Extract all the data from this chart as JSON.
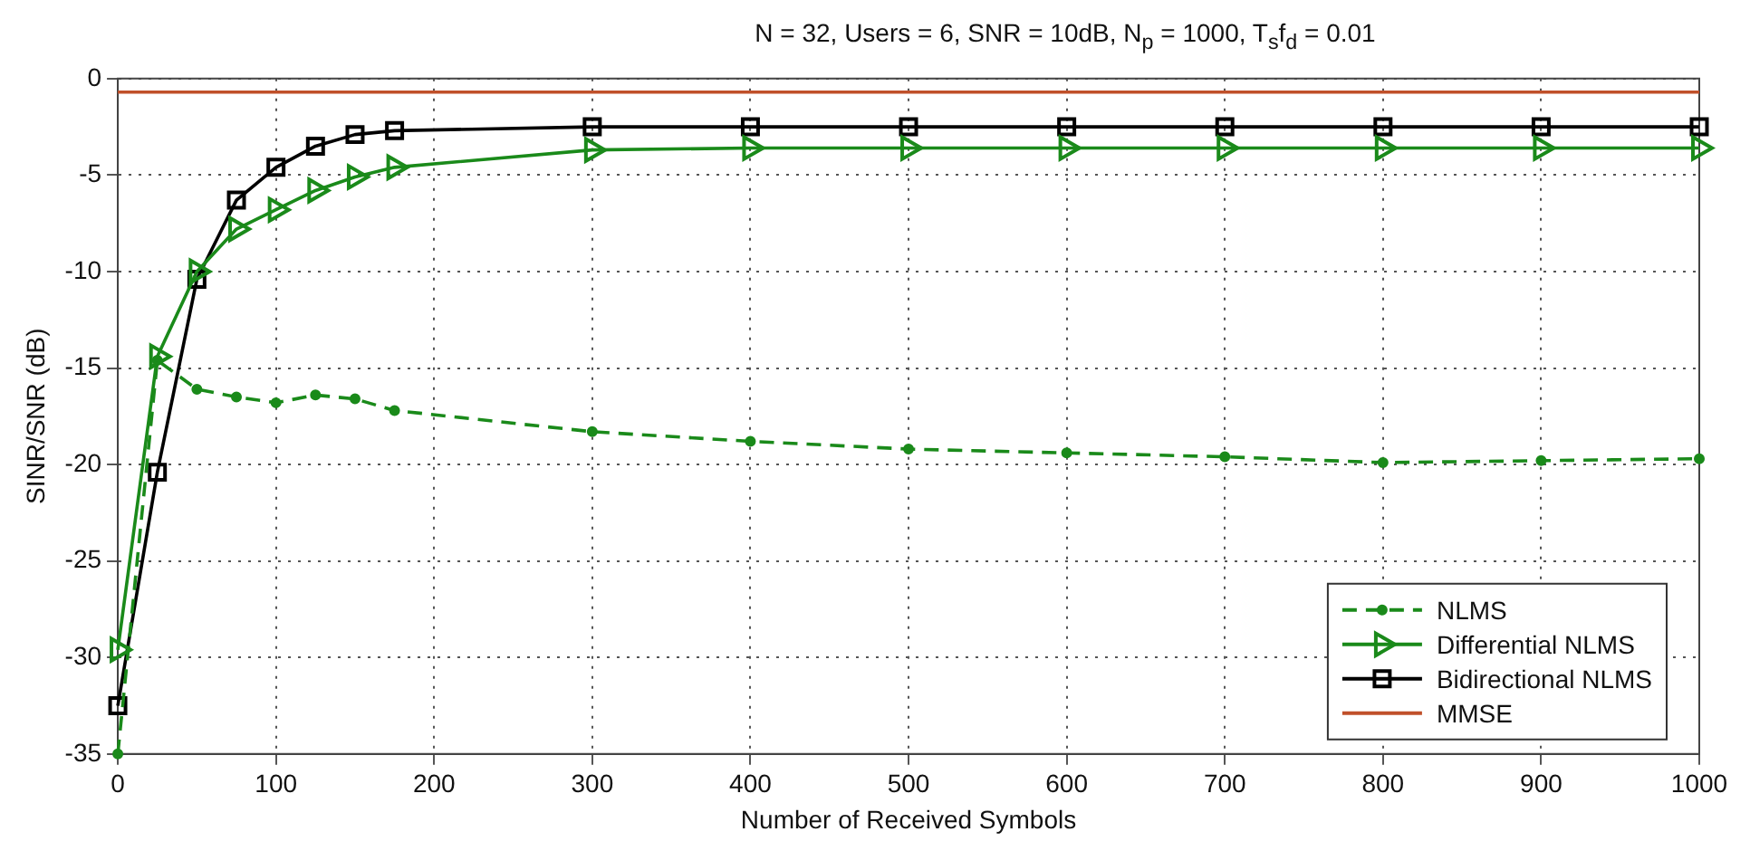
{
  "chart_data": {
    "type": "line",
    "title": "N = 32, Users = 6, SNR = 10dB, N$_{p}$ = 1000, T$_{s}$f$_{d}$ = 0.01",
    "xlabel": "Number of Received Symbols",
    "ylabel": "SINR/SNR (dB)",
    "xlim": [
      0,
      1000
    ],
    "xticks": [
      0,
      100,
      200,
      300,
      400,
      500,
      600,
      700,
      800,
      900,
      1000
    ],
    "ylim": [
      -35,
      0
    ],
    "yticks": [
      -35,
      -30,
      -25,
      -20,
      -15,
      -10,
      -5,
      0
    ],
    "grid": true,
    "legend": "bottom right",
    "series": [
      {
        "name": "NLMS",
        "color": "#1a8a1a",
        "marker": "circle",
        "line_style": "dashed",
        "x": [
          0,
          25,
          50,
          75,
          100,
          125,
          150,
          175,
          300,
          400,
          500,
          600,
          700,
          800,
          900,
          1000
        ],
        "values": [
          -35,
          -14.6,
          -16.1,
          -16.5,
          -16.8,
          -16.4,
          -16.6,
          -17.2,
          -18.3,
          -18.8,
          -19.2,
          -19.4,
          -19.6,
          -19.9,
          -19.8,
          -19.7
        ]
      },
      {
        "name": "Differential NLMS",
        "color": "#1a8a1a",
        "marker": "triangle",
        "line_style": "solid",
        "x": [
          0,
          25,
          50,
          75,
          100,
          125,
          150,
          175,
          300,
          400,
          500,
          600,
          700,
          800,
          900,
          1000
        ],
        "values": [
          -29.6,
          -14.4,
          -10,
          -7.8,
          -6.8,
          -5.8,
          -5.1,
          -4.6,
          -3.7,
          -3.6,
          -3.6,
          -3.6,
          -3.6,
          -3.6,
          -3.6,
          -3.6
        ]
      },
      {
        "name": "Bidirectional NLMS",
        "color": "#000000",
        "marker": "square",
        "line_style": "solid",
        "x": [
          0,
          25,
          50,
          75,
          100,
          125,
          150,
          175,
          300,
          400,
          500,
          600,
          700,
          800,
          900,
          1000
        ],
        "values": [
          -32.5,
          -20.4,
          -10.4,
          -6.3,
          -4.6,
          -3.5,
          -2.9,
          -2.7,
          -2.5,
          -2.5,
          -2.5,
          -2.5,
          -2.5,
          -2.5,
          -2.5,
          -2.5
        ]
      },
      {
        "name": "MMSE",
        "color": "#c0502a",
        "marker": "none",
        "line_style": "solid",
        "x": [
          0,
          1000
        ],
        "values": [
          -0.7,
          -0.7
        ]
      }
    ]
  }
}
